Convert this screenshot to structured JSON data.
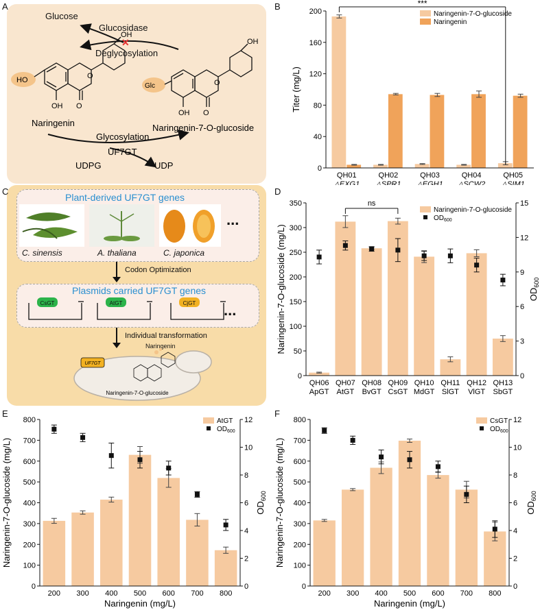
{
  "panels": {
    "A": "A",
    "B": "B",
    "C": "C",
    "D": "D",
    "E": "E",
    "F": "F"
  },
  "panelA": {
    "glucose": "Glucose",
    "glucosidase": "Glucosidase",
    "deglycosylation": "Deglycosylation",
    "naringenin": "Naringenin",
    "product": "Naringenin-7-O-glucoside",
    "glycosylation": "Glycosylation",
    "enzyme": "UF7GT",
    "udpg": "UDPG",
    "udp": "UDP",
    "glc": "Glc",
    "ho": "HO",
    "oh": "OH",
    "o": "O"
  },
  "panelC": {
    "plant_title": "Plant-derived UF7GT genes",
    "sinensis": "C. sinensis",
    "thaliana": "A. thaliana",
    "japonica": "C. japonica",
    "codon": "Codon Optimization",
    "plasmid_title": "Plasmids carried UF7GT genes",
    "genes": [
      "CsGT",
      "AtGT",
      "CjGT"
    ],
    "transformation": "Individual transformation",
    "naringenin": "Naringenin",
    "product": "Naringenin-7-O-glucoside",
    "cell_gene": "UF7GT",
    "ellipsis": "..."
  },
  "chart_data": [
    {
      "id": "B",
      "type": "bar",
      "categories": [
        "QH01",
        "QH02",
        "QH03",
        "QH04",
        "QH05"
      ],
      "sublabels": [
        "△EXG1",
        "△SPR1",
        "△EGH1",
        "△SCW2",
        "△SIM1"
      ],
      "series": [
        {
          "name": "Naringenin-7-O-glucoside",
          "values": [
            193,
            4,
            5,
            4,
            6
          ],
          "errors": [
            2,
            0.5,
            0.5,
            0.5,
            2
          ],
          "color": "#f6caa0"
        },
        {
          "name": "Naringenin",
          "values": [
            4,
            94,
            93,
            94,
            92
          ],
          "errors": [
            0.5,
            1,
            2,
            4,
            2
          ],
          "color": "#f0a35a"
        }
      ],
      "ylabel": "Titer (mg/L)",
      "ylim": [
        0,
        200
      ],
      "yticks": [
        0,
        40,
        80,
        120,
        160,
        200
      ],
      "significance": "***"
    },
    {
      "id": "D",
      "type": "bar",
      "categories": [
        "QH06",
        "QH07",
        "QH08",
        "QH09",
        "QH10",
        "QH11",
        "QH12",
        "QH13"
      ],
      "sublabels": [
        "ApGT",
        "AtGT",
        "BvGT",
        "CsGT",
        "MdGT",
        "SlGT",
        "VlGT",
        "SbGT"
      ],
      "series": [
        {
          "name": "Naringenin-7-O-glucoside",
          "values": [
            6,
            312,
            258,
            313,
            241,
            33,
            248,
            75
          ],
          "errors": [
            1,
            12,
            2,
            6,
            12,
            5,
            7,
            6
          ],
          "color": "#f6caa0"
        },
        {
          "name": "OD600",
          "values": [
            10.3,
            11.3,
            11.0,
            10.9,
            10.4,
            10.4,
            9.6,
            8.3
          ],
          "errors": [
            0.6,
            0.4,
            0.2,
            1.0,
            0.4,
            0.6,
            0.6,
            0.5
          ],
          "axis": "right"
        }
      ],
      "ylabel": "Naringenin-7-O-glucoside (mg/L)",
      "y2label": "OD",
      "y2label_sub": "600",
      "ylim": [
        0,
        350
      ],
      "yticks": [
        0,
        50,
        100,
        150,
        200,
        250,
        300,
        350
      ],
      "y2lim": [
        0,
        15
      ],
      "y2ticks": [
        0,
        3,
        6,
        9,
        12,
        15
      ],
      "significance": "ns"
    },
    {
      "id": "E",
      "type": "bar",
      "categories": [
        "200",
        "300",
        "400",
        "500",
        "600",
        "700",
        "800"
      ],
      "series": [
        {
          "name": "AtGT",
          "values": [
            313,
            353,
            415,
            630,
            519,
            318,
            172
          ],
          "errors": [
            12,
            8,
            12,
            40,
            45,
            30,
            15
          ],
          "color": "#f6caa0"
        },
        {
          "name": "OD600",
          "values": [
            11.3,
            10.7,
            9.4,
            9.1,
            8.5,
            6.6,
            4.4
          ],
          "errors": [
            0.3,
            0.3,
            0.9,
            0.6,
            0.5,
            0.2,
            0.4
          ],
          "axis": "right"
        }
      ],
      "xlabel": "Naringenin (mg/L)",
      "ylabel": "Naringenin-7-O-glucoside (mg/L)",
      "y2label": "OD",
      "y2label_sub": "600",
      "ylim": [
        0,
        800
      ],
      "yticks": [
        0,
        100,
        200,
        300,
        400,
        500,
        600,
        700,
        800
      ],
      "y2lim": [
        0,
        12
      ],
      "y2ticks": [
        0,
        2,
        4,
        6,
        8,
        10,
        12
      ]
    },
    {
      "id": "F",
      "type": "bar",
      "categories": [
        "200",
        "300",
        "400",
        "500",
        "600",
        "700",
        "800"
      ],
      "series": [
        {
          "name": "CsGT",
          "values": [
            315,
            463,
            568,
            698,
            533,
            463,
            262
          ],
          "errors": [
            5,
            5,
            28,
            8,
            15,
            40,
            45
          ],
          "color": "#f6caa0"
        },
        {
          "name": "OD600",
          "values": [
            11.2,
            10.5,
            9.3,
            9.1,
            8.6,
            6.6,
            4.1
          ],
          "errors": [
            0.2,
            0.3,
            0.5,
            0.6,
            0.4,
            0.6,
            0.6
          ],
          "axis": "right"
        }
      ],
      "xlabel": "Naringenin (mg/L)",
      "ylabel": "Naringenin-7-O-glucoside (mg/L)",
      "y2label": "OD",
      "y2label_sub": "600",
      "ylim": [
        0,
        800
      ],
      "yticks": [
        0,
        100,
        200,
        300,
        400,
        500,
        600,
        700,
        800
      ],
      "y2lim": [
        0,
        12
      ],
      "y2ticks": [
        0,
        2,
        4,
        6,
        8,
        10,
        12
      ]
    }
  ]
}
